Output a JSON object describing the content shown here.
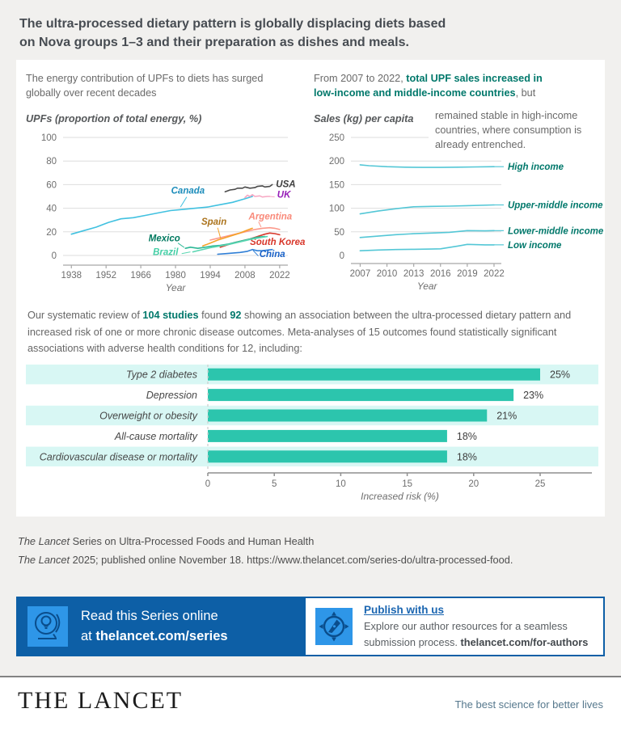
{
  "title": {
    "line1": "The ultra-processed dietary pattern is globally displacing diets based",
    "line2": "on Nova groups 1–3 and their preparation as dishes and meals."
  },
  "colors": {
    "teal_accent": "#00786b",
    "bar_teal": "#2cc5ad",
    "row_highlight": "#d8f7f4",
    "banner_blue": "#0d5fa6",
    "icon_blue": "#2e96e8",
    "link_blue": "#1b66b1",
    "line_cyan": "#54c7d6"
  },
  "left_chart_caption": {
    "line1": "The energy contribution of UPFs to diets has surged",
    "line2": "globally over recent decades"
  },
  "right_chart_caption": {
    "intro": "From 2007 to 2022, ",
    "highlight_line1": "total UPF sales increased in",
    "highlight_line2": "low-income and middle-income countries",
    "after": ", but",
    "continuation": "remained stable in high-income countries, where consumption is already entrenched."
  },
  "review": {
    "p1": "Our systematic review of ",
    "b1": "104 studies",
    "p2": " found ",
    "b2": "92",
    "p3": " showing an association between the ultra-processed dietary pattern and increased risk of one or more chronic disease outcomes. Meta-analyses of 15 outcomes found statistically significant associations with adverse health conditions for 12, including:"
  },
  "citation": {
    "line1_italic": "The Lancet",
    "line1_rest": " Series on Ultra-Processed Foods and Human Health",
    "line2_italic": "The Lancet",
    "line2_rest": " 2025; published online November 18. https://www.thelancet.com/series-do/ultra-processed-food."
  },
  "banner": {
    "read_line1": "Read this Series online",
    "read_line2_prefix": "at ",
    "read_line2_bold": "thelancet.com/series",
    "publish_title": "Publish with us",
    "publish_line1": "Explore our author resources for a seamless",
    "publish_line2_prefix": "submission process. ",
    "publish_line2_bold": "thelancet.com/for-authors"
  },
  "footer": {
    "wordmark": "THE LANCET",
    "tagline": "The best science for better lives"
  },
  "chart_data": [
    {
      "type": "line",
      "title": "The energy contribution of UPFs to diets has surged globally over recent decades",
      "ylabel": "UPFs (proportion of total energy, %)",
      "xlabel": "Year",
      "xlim": [
        1934,
        2024
      ],
      "ylim": [
        0,
        100
      ],
      "xticks": [
        1938,
        1952,
        1966,
        1980,
        1994,
        2008,
        2022
      ],
      "yticks": [
        0,
        20,
        40,
        60,
        80,
        100
      ],
      "grid": true,
      "series": [
        {
          "name": "Canada",
          "color": "#41c1e0",
          "label_color": "#1d8dbb",
          "anchor": "middle",
          "label_at": [
            1985,
            52.5
          ],
          "leader": [
            [
              1984.5,
              49.5
            ],
            [
              1982,
              41
            ]
          ],
          "points": [
            [
              1938,
              18
            ],
            [
              1943,
              21
            ],
            [
              1948,
              24
            ],
            [
              1953,
              28
            ],
            [
              1958,
              31
            ],
            [
              1963,
              32
            ],
            [
              1968,
              34
            ],
            [
              1973,
              36
            ],
            [
              1978,
              38
            ],
            [
              1983,
              39
            ],
            [
              1988,
              40
            ],
            [
              1993,
              41
            ],
            [
              1998,
              43
            ],
            [
              2003,
              45
            ],
            [
              2008,
              48
            ],
            [
              2011,
              50
            ]
          ]
        },
        {
          "name": "USA",
          "color": "#4b4b4b",
          "label_color": "#3f3f3f",
          "anchor": "start",
          "label_at": [
            2020.5,
            58
          ],
          "points": [
            [
              2000,
              54
            ],
            [
              2002,
              55.5
            ],
            [
              2004,
              56
            ],
            [
              2005,
              57
            ],
            [
              2007,
              57
            ],
            [
              2008,
              58
            ],
            [
              2010,
              57
            ],
            [
              2012,
              57.5
            ],
            [
              2013,
              58.5
            ],
            [
              2015,
              59
            ],
            [
              2016,
              58
            ],
            [
              2018,
              58.5
            ],
            [
              2019,
              60
            ]
          ]
        },
        {
          "name": "UK",
          "color": "#f7a8c3",
          "label_color": "#971fb8",
          "anchor": "start",
          "label_at": [
            2021,
            49
          ],
          "leader": [
            [
              2018,
              50
            ],
            [
              2020,
              49.6
            ]
          ],
          "points": [
            [
              2008,
              49
            ],
            [
              2009,
              51
            ],
            [
              2010,
              50
            ],
            [
              2011,
              51.5
            ],
            [
              2012,
              50
            ],
            [
              2014,
              50.5
            ],
            [
              2015,
              49.5
            ],
            [
              2017,
              50
            ],
            [
              2018,
              50
            ]
          ]
        },
        {
          "name": "Argentina",
          "color": "#fb998b",
          "label_color": "#f98a7a",
          "anchor": "start",
          "label_at": [
            2009.5,
            30.5
          ],
          "leader": [
            [
              2013.5,
              28.5
            ],
            [
              2014.5,
              24
            ]
          ],
          "points": [
            [
              1994,
              13
            ],
            [
              1997,
              14.5
            ],
            [
              2000,
              16
            ],
            [
              2003,
              17.5
            ],
            [
              2006,
              19
            ],
            [
              2009,
              20.5
            ],
            [
              2012,
              22
            ],
            [
              2015,
              23
            ],
            [
              2018,
              23.5
            ],
            [
              2020,
              23
            ],
            [
              2022,
              22
            ]
          ]
        },
        {
          "name": "Spain",
          "color": "#f5a229",
          "label_color": "#ab731c",
          "anchor": "middle",
          "label_at": [
            1995.5,
            26
          ],
          "leader": [
            [
              1997,
              23.5
            ],
            [
              1998.3,
              13.5
            ]
          ],
          "points": [
            [
              1991,
              8
            ],
            [
              1994,
              10.5
            ],
            [
              1997,
              13
            ],
            [
              2000,
              15
            ],
            [
              2003,
              17
            ],
            [
              2006,
              19
            ],
            [
              2009,
              21.5
            ],
            [
              2011,
              23
            ]
          ]
        },
        {
          "name": "South Korea",
          "color": "#d8372b",
          "label_color": "#d8372b",
          "anchor": "start",
          "label_at": [
            2010,
            9
          ],
          "points": [
            [
              1998,
              7
            ],
            [
              2001,
              9
            ],
            [
              2004,
              11
            ],
            [
              2007,
              12.5
            ],
            [
              2010,
              14
            ],
            [
              2013,
              16
            ],
            [
              2016,
              18
            ],
            [
              2018,
              19
            ],
            [
              2020,
              18.5
            ],
            [
              2022,
              17.5
            ]
          ]
        },
        {
          "name": "Mexico",
          "color": "#2db896",
          "label_color": "#00795f",
          "anchor": "middle",
          "label_at": [
            1975.5,
            12
          ],
          "leader": [
            [
              1981,
              10.5
            ],
            [
              1983.5,
              6.8
            ]
          ],
          "points": [
            [
              1984,
              6
            ],
            [
              1986,
              7
            ],
            [
              1989,
              6
            ],
            [
              1992,
              7
            ],
            [
              1995,
              8
            ],
            [
              1998,
              8.5
            ],
            [
              2001,
              9.5
            ],
            [
              2004,
              11
            ],
            [
              2007,
              12.5
            ],
            [
              2010,
              14
            ],
            [
              2013,
              15.5
            ],
            [
              2016,
              16
            ]
          ]
        },
        {
          "name": "Brazil",
          "color": "#5bd6b2",
          "label_color": "#44cfa6",
          "anchor": "middle",
          "label_at": [
            1976,
            0.5
          ],
          "leader": [
            [
              1982.5,
              1.5
            ],
            [
              1986,
              3
            ]
          ],
          "points": [
            [
              1987,
              3
            ],
            [
              1990,
              4.5
            ],
            [
              1994,
              6.5
            ],
            [
              1998,
              8
            ],
            [
              2002,
              9.5
            ],
            [
              2006,
              11.5
            ],
            [
              2010,
              13.5
            ],
            [
              2014,
              15
            ],
            [
              2017,
              16
            ]
          ]
        },
        {
          "name": "China",
          "color": "#2f7fd6",
          "label_color": "#1b63c9",
          "anchor": "start",
          "label_at": [
            2013.8,
            -1.5
          ],
          "leader": [
            [
              2013.4,
              -0.5
            ],
            [
              2011.3,
              4.2
            ]
          ],
          "points": [
            [
              1997,
              1
            ],
            [
              2000,
              1.5
            ],
            [
              2003,
              2
            ],
            [
              2006,
              2.5
            ],
            [
              2009,
              3.5
            ],
            [
              2011,
              5
            ],
            [
              2013,
              4
            ],
            [
              2015,
              4
            ],
            [
              2017,
              4.5
            ],
            [
              2019,
              5
            ]
          ]
        }
      ]
    },
    {
      "type": "line",
      "title": "From 2007 to 2022, total UPF sales increased in low-income and middle-income countries, but remained stable in high-income countries, where consumption is already entrenched.",
      "ylabel": "Sales (kg) per capita",
      "xlabel": "Year",
      "xlim": [
        2005.6,
        2023
      ],
      "ylim": [
        0,
        250
      ],
      "xticks": [
        2007,
        2010,
        2013,
        2016,
        2019,
        2022
      ],
      "yticks": [
        0,
        50,
        100,
        150,
        200,
        250
      ],
      "grid": true,
      "legend_position": "right",
      "line_color": "#54c7d6",
      "label_color": "#00786b",
      "series": [
        {
          "name": "High income",
          "points": [
            [
              2007,
              192
            ],
            [
              2008,
              190
            ],
            [
              2010,
              188
            ],
            [
              2012,
              187
            ],
            [
              2014,
              186.5
            ],
            [
              2016,
              186.5
            ],
            [
              2018,
              187
            ],
            [
              2020,
              187.5
            ],
            [
              2022,
              188
            ]
          ]
        },
        {
          "name": "Upper-middle income",
          "points": [
            [
              2007,
              88
            ],
            [
              2009,
              94
            ],
            [
              2011,
              99
            ],
            [
              2013,
              103
            ],
            [
              2015,
              104
            ],
            [
              2017,
              104.5
            ],
            [
              2019,
              105.5
            ],
            [
              2022,
              107
            ]
          ]
        },
        {
          "name": "Lower-middle income",
          "points": [
            [
              2007,
              38
            ],
            [
              2009,
              41
            ],
            [
              2011,
              44
            ],
            [
              2013,
              46
            ],
            [
              2015,
              47.5
            ],
            [
              2017,
              49
            ],
            [
              2019,
              52.5
            ],
            [
              2021,
              52
            ],
            [
              2022,
              52.5
            ]
          ]
        },
        {
          "name": "Low income",
          "points": [
            [
              2007,
              10
            ],
            [
              2009,
              11.5
            ],
            [
              2011,
              12.5
            ],
            [
              2013,
              13
            ],
            [
              2015,
              13.5
            ],
            [
              2016,
              14
            ],
            [
              2018,
              20
            ],
            [
              2019,
              23.5
            ],
            [
              2021,
              22.5
            ],
            [
              2022,
              22.5
            ]
          ]
        }
      ]
    },
    {
      "type": "bar",
      "orientation": "horizontal",
      "categories": [
        "Type 2 diabetes",
        "Depression",
        "Overweight or obesity",
        "All-cause mortality",
        "Cardiovascular disease or mortality"
      ],
      "values": [
        25,
        23,
        21,
        18,
        18
      ],
      "value_labels": [
        "25%",
        "23%",
        "21%",
        "18%",
        "18%"
      ],
      "xlabel": "Increased risk (%)",
      "xticks": [
        0,
        5,
        10,
        15,
        20,
        25
      ],
      "xlim": [
        0,
        29
      ],
      "bar_color": "#2cc5ad",
      "row_highlight": "#d8f7f4",
      "highlighted_rows": [
        0,
        2,
        4
      ]
    }
  ]
}
